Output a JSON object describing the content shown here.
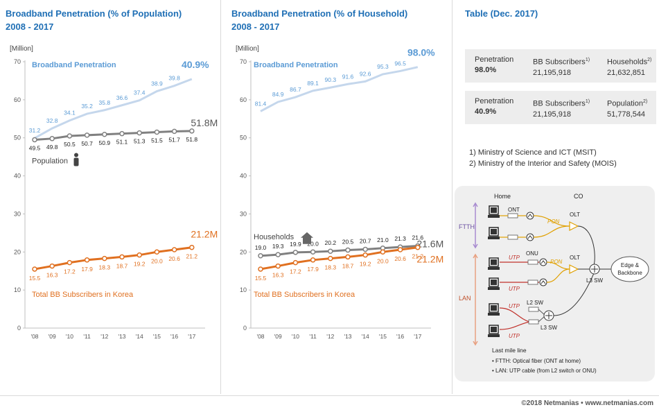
{
  "charts": [
    {
      "title_line1": "Broadband Penetration (% of Population)",
      "title_line2": "2008 - 2017",
      "unit": "[Million]",
      "penetration_label": "Broadband Penetration",
      "penetration_final": "40.9%",
      "reference_label": "Population",
      "reference_final": "51.8M",
      "subscribers_label": "Total BB Subscribers in Korea",
      "subscribers_final": "21.2M"
    },
    {
      "title_line1": "Broadband Penetration (% of Household)",
      "title_line2": "2008 - 2017",
      "unit": "[Million]",
      "penetration_label": "Broadband Penetration",
      "penetration_final": "98.0%",
      "reference_label": "Households",
      "reference_final": "21.6M",
      "subscribers_label": "Total BB Subscribers in Korea",
      "subscribers_final": "21.2M"
    }
  ],
  "table": {
    "title": "Table (Dec. 2017)",
    "rows": [
      {
        "col1_label": "Penetration",
        "col1_value": "98.0%",
        "col2_label": "BB Subscribers",
        "col2_sup": "1)",
        "col2_value": "21,195,918",
        "col3_label": "Households",
        "col3_sup": "2)",
        "col3_value": "21,632,851"
      },
      {
        "col1_label": "Penetration",
        "col1_value": "40.9%",
        "col2_label": "BB Subscribers",
        "col2_sup": "1)",
        "col2_value": "21,195,918",
        "col3_label": "Population",
        "col3_sup": "2)",
        "col3_value": "51,778,544"
      }
    ],
    "note1": "1) Ministry of Science and ICT (MSIT)",
    "note2": "2) Ministry of the Interior and Safety (MOIS)"
  },
  "diagram": {
    "home_label": "Home",
    "co_label": "CO",
    "ftth_label": "FTTH",
    "lan_label": "LAN",
    "ont_label": "ONT",
    "onu_label": "ONU",
    "pon_label": "PON",
    "olt_label": "OLT",
    "utp_label": "UTP",
    "l2sw_label": "L2 SW",
    "l3sw_label": "L3 SW",
    "edge_label_1": "Edge &",
    "edge_label_2": "Backbone",
    "lastmile_title": "Last mile line",
    "lastmile_item1": "• FTTH: Optical fiber (ONT at home)",
    "lastmile_item2": "• LAN: UTP cable (from L2 switch or ONU)"
  },
  "footer": "©2018 Netmanias • www.netmanias.com",
  "colors": {
    "title": "#1f6fb5",
    "penetration": "#c5d7ec",
    "penetration_text": "#5b9bd5",
    "reference": "#808080",
    "subscribers": "#e07020"
  },
  "chart_data": [
    {
      "type": "line",
      "title": "Broadband Penetration (% of Population) 2008 - 2017",
      "ylabel": "[Million]",
      "ylim": [
        0,
        70
      ],
      "yticks": [
        0,
        10,
        20,
        30,
        40,
        50,
        60,
        70
      ],
      "categories": [
        "'08",
        "'09",
        "'10",
        "'11",
        "'12",
        "'13",
        "'14",
        "'15",
        "'16",
        "'17"
      ],
      "series": [
        {
          "name": "Broadband Penetration",
          "unit": "%",
          "values": [
            31.2,
            32.8,
            34.1,
            35.2,
            35.8,
            36.6,
            37.4,
            38.9,
            39.8,
            40.9
          ]
        },
        {
          "name": "Population",
          "values": [
            49.5,
            49.8,
            50.5,
            50.7,
            50.9,
            51.1,
            51.3,
            51.5,
            51.7,
            51.8
          ]
        },
        {
          "name": "Total BB Subscribers in Korea",
          "values": [
            15.5,
            16.3,
            17.2,
            17.9,
            18.3,
            18.7,
            19.2,
            20.0,
            20.6,
            21.2
          ]
        }
      ],
      "grid": false
    },
    {
      "type": "line",
      "title": "Broadband Penetration (% of Household) 2008 - 2017",
      "ylabel": "[Million]",
      "ylim": [
        0,
        70
      ],
      "yticks": [
        0,
        10,
        20,
        30,
        40,
        50,
        60,
        70
      ],
      "categories": [
        "'08",
        "'09",
        "'10",
        "'11",
        "'12",
        "'13",
        "'14",
        "'15",
        "'16",
        "'17"
      ],
      "series": [
        {
          "name": "Broadband Penetration",
          "unit": "%",
          "values": [
            81.4,
            84.9,
            86.7,
            89.1,
            90.3,
            91.6,
            92.6,
            95.3,
            96.5,
            98.0
          ]
        },
        {
          "name": "Households",
          "values": [
            19.0,
            19.3,
            19.9,
            20.0,
            20.2,
            20.5,
            20.7,
            21.0,
            21.3,
            21.6
          ]
        },
        {
          "name": "Total BB Subscribers in Korea",
          "values": [
            15.5,
            16.3,
            17.2,
            17.9,
            18.3,
            18.7,
            19.2,
            20.0,
            20.6,
            21.2
          ]
        }
      ],
      "grid": false
    }
  ]
}
